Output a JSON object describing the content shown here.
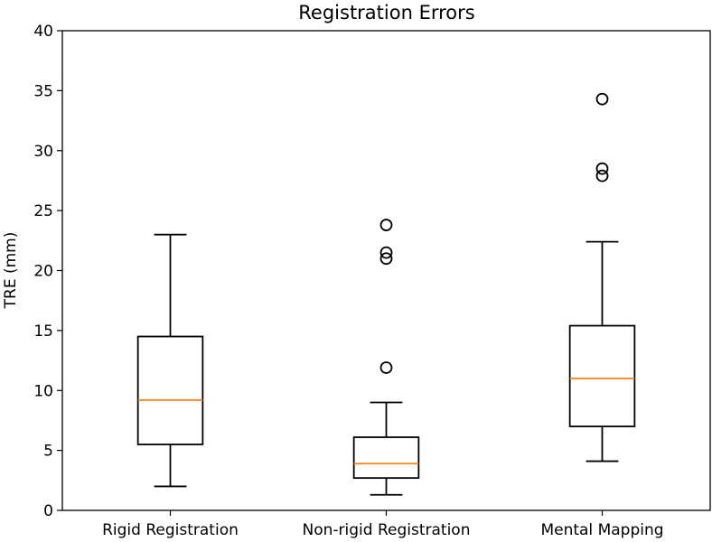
{
  "chart_data": {
    "type": "box",
    "title": "Registration Errors",
    "xlabel": "",
    "ylabel": "TRE (mm)",
    "ylim": [
      0,
      40
    ],
    "yticks": [
      0,
      5,
      10,
      15,
      20,
      25,
      30,
      35,
      40
    ],
    "grid": false,
    "categories": [
      "Rigid Registration",
      "Non-rigid Registration",
      "Mental Mapping"
    ],
    "boxes": [
      {
        "category": "Rigid Registration",
        "whisker_low": 2.0,
        "q1": 5.5,
        "median": 9.2,
        "q3": 14.5,
        "whisker_high": 23.0,
        "outliers": []
      },
      {
        "category": "Non-rigid Registration",
        "whisker_low": 1.3,
        "q1": 2.7,
        "median": 3.9,
        "q3": 6.1,
        "whisker_high": 9.0,
        "outliers": [
          11.9,
          21.0,
          21.5,
          23.8
        ]
      },
      {
        "category": "Mental Mapping",
        "whisker_low": 4.1,
        "q1": 7.0,
        "median": 11.0,
        "q3": 15.4,
        "whisker_high": 22.4,
        "outliers": [
          27.9,
          28.5,
          34.3
        ]
      }
    ],
    "colors": {
      "median": "#ff7f0e",
      "box": "#000000",
      "outlier": "#000000"
    }
  }
}
